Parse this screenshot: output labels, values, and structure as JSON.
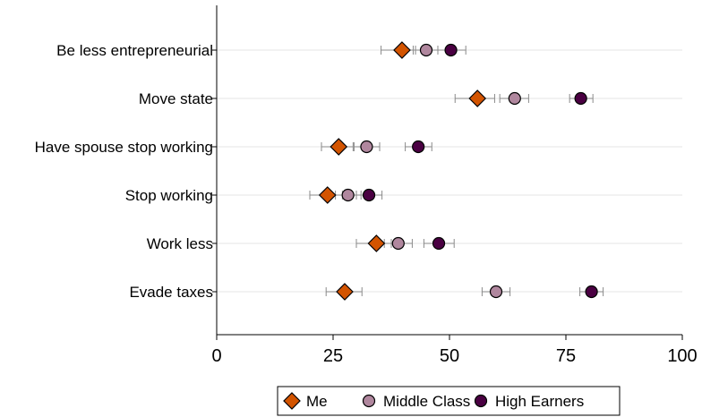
{
  "chart_data": {
    "type": "scatter",
    "title": "",
    "xlabel": "",
    "ylabel": "",
    "xlim": [
      0,
      100
    ],
    "xticks": [
      0,
      25,
      50,
      75,
      100
    ],
    "grid": true,
    "legend_position": "bottom",
    "categories": [
      "Be less entrepreneurial",
      "Move state",
      "Have spouse stop working",
      "Stop working",
      "Work less",
      "Evade taxes"
    ],
    "series": [
      {
        "name": "Me",
        "marker": "diamond",
        "color": "#d35400",
        "values": [
          39.8,
          56.0,
          26.2,
          23.8,
          34.3,
          27.5
        ],
        "ci": [
          [
            35.3,
            42.7
          ],
          [
            51.2,
            59.7
          ],
          [
            22.5,
            29.3
          ],
          [
            20.0,
            27.0
          ],
          [
            30.0,
            37.5
          ],
          [
            23.5,
            31.2
          ]
        ]
      },
      {
        "name": "Middle Class",
        "marker": "circle",
        "color": "#b0879e",
        "values": [
          45.0,
          64.0,
          32.2,
          28.2,
          39.0,
          60.0
        ],
        "ci": [
          [
            42.2,
            47.5
          ],
          [
            60.8,
            67.0
          ],
          [
            29.5,
            35.0
          ],
          [
            25.5,
            31.0
          ],
          [
            36.0,
            42.0
          ],
          [
            57.0,
            63.0
          ]
        ]
      },
      {
        "name": "High Earners",
        "marker": "circle",
        "color": "#4a0042",
        "values": [
          50.3,
          78.2,
          43.3,
          32.7,
          47.7,
          80.5
        ],
        "ci": [
          [
            47.5,
            53.5
          ],
          [
            75.8,
            80.8
          ],
          [
            40.5,
            46.2
          ],
          [
            30.0,
            35.5
          ],
          [
            44.5,
            51.0
          ],
          [
            78.0,
            83.0
          ]
        ]
      }
    ]
  }
}
